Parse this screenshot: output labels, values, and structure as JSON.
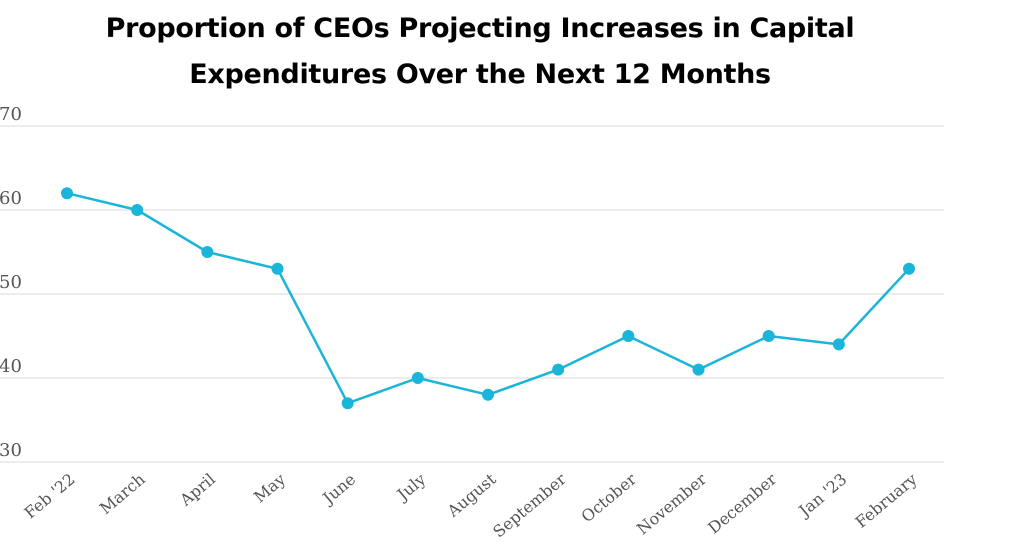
{
  "chart_data": {
    "type": "line",
    "title_lines": [
      "Proportion of CEOs Projecting Increases in Capital",
      "Expenditures Over the Next 12 Months"
    ],
    "xlabel": "",
    "ylabel": "",
    "categories": [
      "Feb '22",
      "March",
      "April",
      "May",
      "June",
      "July",
      "August",
      "September",
      "October",
      "November",
      "December",
      "Jan '23",
      "February"
    ],
    "series": [
      {
        "values": [
          62,
          60,
          55,
          53,
          37,
          40,
          38,
          41,
          45,
          41,
          45,
          44,
          53
        ],
        "color": "#1bb5d9"
      }
    ],
    "ylim": [
      30,
      70
    ],
    "yticks": [
      "70",
      "60",
      "50",
      "40",
      "30"
    ],
    "grid": true,
    "gridline_color": "#d9d9d9",
    "legend": "none"
  }
}
